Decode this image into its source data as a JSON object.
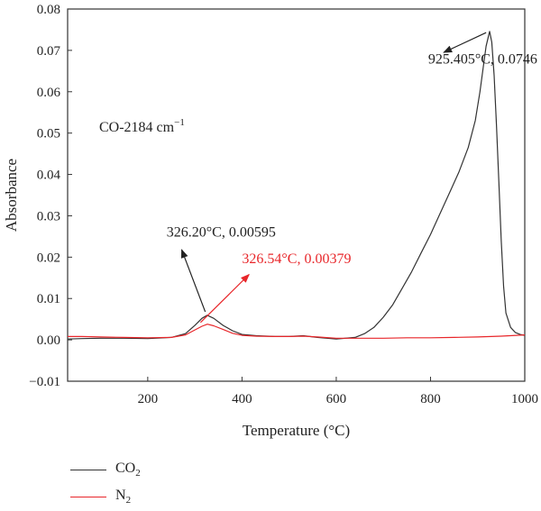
{
  "chart_data": {
    "type": "line",
    "title": "",
    "xlabel": "Temperature (°C)",
    "ylabel": "Absorbance",
    "xlim": [
      30,
      1000
    ],
    "ylim": [
      -0.01,
      0.08
    ],
    "x_ticks": [
      200,
      400,
      600,
      800,
      1000
    ],
    "x_tick_labels": [
      "200",
      "400",
      "600",
      "800",
      "1000"
    ],
    "y_ticks": [
      -0.01,
      0.0,
      0.01,
      0.02,
      0.03,
      0.04,
      0.05,
      0.06,
      0.07,
      0.08
    ],
    "y_tick_labels": [
      "−0.01",
      "0.00",
      "0.01",
      "0.02",
      "0.03",
      "0.04",
      "0.05",
      "0.06",
      "0.07",
      "0.08"
    ],
    "grid": false,
    "legend_position": "bottom-left-outside",
    "annotation_main": "CO-2184 cm",
    "annotation_main_sup": "−1",
    "series": [
      {
        "name": "CO",
        "name_sub": "2",
        "color": "#333333",
        "x": [
          30,
          60,
          100,
          150,
          200,
          250,
          280,
          300,
          315,
          326.2,
          340,
          360,
          380,
          400,
          430,
          470,
          500,
          530,
          560,
          600,
          640,
          660,
          680,
          700,
          720,
          740,
          760,
          780,
          800,
          820,
          840,
          860,
          880,
          895,
          905,
          912,
          918,
          925.405,
          930,
          935,
          940,
          945,
          950,
          955,
          960,
          970,
          980,
          990,
          1000
        ],
        "y": [
          0.0002,
          0.0003,
          0.0004,
          0.0004,
          0.0003,
          0.0006,
          0.0015,
          0.0035,
          0.0052,
          0.00595,
          0.0052,
          0.0035,
          0.0022,
          0.0013,
          0.001,
          0.0008,
          0.0008,
          0.001,
          0.0006,
          0.0002,
          0.0006,
          0.0015,
          0.003,
          0.0055,
          0.0085,
          0.0125,
          0.0165,
          0.021,
          0.0255,
          0.0305,
          0.0355,
          0.0405,
          0.0465,
          0.053,
          0.06,
          0.066,
          0.071,
          0.0746,
          0.072,
          0.064,
          0.052,
          0.038,
          0.024,
          0.013,
          0.0065,
          0.003,
          0.0018,
          0.0013,
          0.0011
        ]
      },
      {
        "name": "N",
        "name_sub": "2",
        "color": "#e8262a",
        "x": [
          30,
          60,
          100,
          150,
          200,
          250,
          280,
          300,
          315,
          326.54,
          340,
          360,
          380,
          400,
          430,
          470,
          500,
          530,
          560,
          600,
          650,
          700,
          750,
          800,
          850,
          900,
          950,
          1000
        ],
        "y": [
          0.0008,
          0.0008,
          0.0007,
          0.0006,
          0.0005,
          0.0006,
          0.0012,
          0.0024,
          0.0033,
          0.00379,
          0.0034,
          0.0025,
          0.0016,
          0.0011,
          0.0009,
          0.0008,
          0.0008,
          0.0009,
          0.0007,
          0.0004,
          0.0004,
          0.0004,
          0.0005,
          0.0005,
          0.0006,
          0.0007,
          0.0009,
          0.0012
        ]
      }
    ],
    "annotations": [
      {
        "text": "925.405°C, 0.0746",
        "color": "#222222",
        "point": [
          925.405,
          0.0746
        ],
        "text_pos": [
          795,
          0.0668
        ],
        "arrow_from": [
          870,
          0.0695
        ]
      },
      {
        "text": "326.20°C, 0.00595",
        "color": "#222222",
        "point": [
          326.2,
          0.00595
        ],
        "text_pos": [
          240,
          0.025
        ],
        "arrow_from": [
          270,
          0.0215
        ]
      },
      {
        "text": "326.54°C, 0.00379",
        "color": "#e8262a",
        "point": [
          326.54,
          0.00379
        ],
        "text_pos": [
          400,
          0.0185
        ],
        "arrow_from": [
          315,
          0.0152
        ]
      }
    ]
  }
}
